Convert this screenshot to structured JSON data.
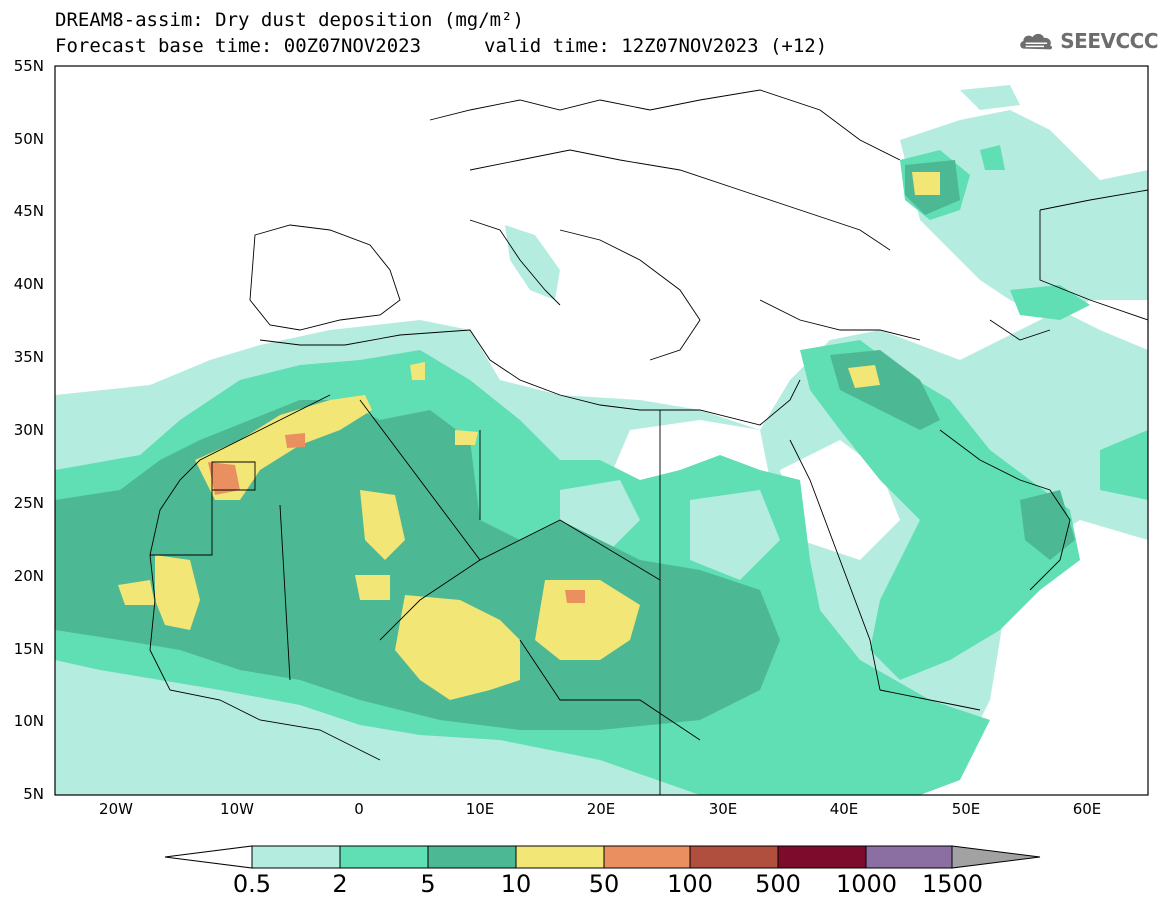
{
  "title": {
    "line1": "DREAM8-assim: Dry dust deposition (mg/m²)",
    "line2_left": "Forecast base time: 00Z07NOV2023",
    "line2_right": "valid time: 12Z07NOV2023 (+12)"
  },
  "logo": {
    "text": "SEEVCCC",
    "icon": "cloud-logo-icon"
  },
  "axes": {
    "lat_labels": [
      "55N",
      "50N",
      "45N",
      "40N",
      "35N",
      "30N",
      "25N",
      "20N",
      "15N",
      "10N",
      "5N"
    ],
    "lon_labels": [
      "20W",
      "10W",
      "0",
      "10E",
      "20E",
      "30E",
      "40E",
      "50E",
      "60E"
    ],
    "lat_range": [
      5,
      55
    ],
    "lon_range": [
      -25,
      65
    ]
  },
  "colorbar": {
    "levels": [
      "0.5",
      "2",
      "5",
      "10",
      "50",
      "100",
      "500",
      "1000",
      "1500"
    ],
    "colors": [
      "#ffffff",
      "#b5ece0",
      "#5fdfb3",
      "#4db894",
      "#f2e677",
      "#ea9060",
      "#b04f3e",
      "#7d0c2c",
      "#8c6fa2",
      "#a2a2a2"
    ]
  },
  "colors": {
    "c05": "#b5ece0",
    "c2": "#5fdfb3",
    "c5": "#4db894",
    "c10": "#f2e677",
    "c50": "#ea9060",
    "c100": "#b04f3e"
  }
}
